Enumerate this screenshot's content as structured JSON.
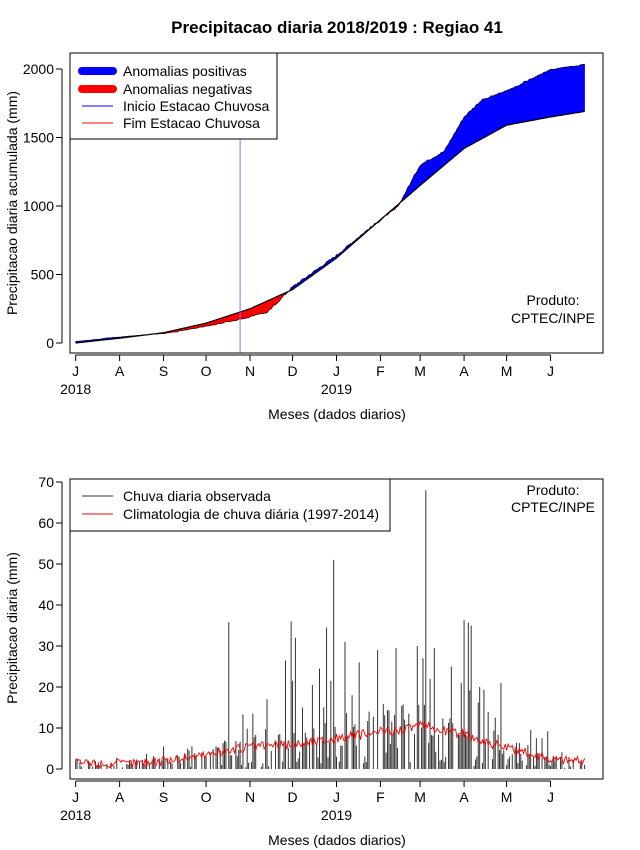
{
  "page": {
    "title": "Precipitacao diaria 2018/2019 : Regiao 41",
    "credit_line1": "Produto:",
    "credit_line2": "CPTEC/INPE"
  },
  "colors": {
    "positive": "#0000ff",
    "negative": "#ff0000",
    "start_line": "#6f7bff",
    "end_line": "#ff0000",
    "observed": "#333333",
    "climatology": "#ff0000"
  },
  "months": [
    "J",
    "A",
    "S",
    "O",
    "N",
    "D",
    "J",
    "F",
    "M",
    "A",
    "M",
    "J"
  ],
  "years": [
    "2018",
    "2019"
  ],
  "chart_data": [
    {
      "type": "area",
      "title": "Precipitacao diaria 2018/2019 : Regiao 41",
      "xlabel": "Meses (dados diarios)",
      "ylabel": "Precipitacao diaria acumulada (mm)",
      "ylim": [
        0,
        2000
      ],
      "yticks": [
        0,
        500,
        1000,
        1500,
        2000
      ],
      "x_unit": "days since 1 Jul 2018",
      "xlim": [
        -4,
        372
      ],
      "rainy_season_start_day": 116,
      "legend": [
        "Anomalias positivas",
        "Anomalias negativas",
        "Inicio Estacao Chuvosa",
        "Fim Estacao Chuvosa"
      ],
      "series": [
        {
          "name": "Climatologia acumulada",
          "points": [
            [
              0,
              0
            ],
            [
              31,
              35
            ],
            [
              62,
              75
            ],
            [
              92,
              145
            ],
            [
              123,
              250
            ],
            [
              153,
              390
            ],
            [
              184,
              620
            ],
            [
              215,
              900
            ],
            [
              243,
              1150
            ],
            [
              274,
              1420
            ],
            [
              304,
              1590
            ],
            [
              335,
              1650
            ],
            [
              359,
              1690
            ]
          ]
        },
        {
          "name": "Observado acumulado",
          "points": [
            [
              0,
              5
            ],
            [
              31,
              38
            ],
            [
              62,
              63
            ],
            [
              92,
              118
            ],
            [
              115,
              170
            ],
            [
              135,
              220
            ],
            [
              153,
              410
            ],
            [
              184,
              640
            ],
            [
              205,
              820
            ],
            [
              227,
              990
            ],
            [
              243,
              1300
            ],
            [
              260,
              1400
            ],
            [
              274,
              1650
            ],
            [
              286,
              1770
            ],
            [
              304,
              1840
            ],
            [
              320,
              1920
            ],
            [
              335,
              1990
            ],
            [
              359,
              2030
            ]
          ]
        }
      ]
    },
    {
      "type": "bar",
      "xlabel": "Meses (dados diarios)",
      "ylabel": "Precipitacao diaria (mm)",
      "ylim": [
        0,
        70
      ],
      "yticks": [
        0,
        10,
        20,
        30,
        40,
        50,
        60,
        70
      ],
      "legend": [
        "Chuva diaria observada",
        "Climatologia de chuva diária (1997-2014)"
      ],
      "observed_peaks": [
        [
          108,
          35.8
        ],
        [
          125,
          13.5
        ],
        [
          135,
          17
        ],
        [
          148,
          26.5
        ],
        [
          152,
          36
        ],
        [
          153,
          21.5
        ],
        [
          155,
          32
        ],
        [
          160,
          15
        ],
        [
          167,
          20.5
        ],
        [
          172,
          24.5
        ],
        [
          177,
          34.5
        ],
        [
          180,
          21.5
        ],
        [
          182,
          51
        ],
        [
          190,
          31
        ],
        [
          195,
          18
        ],
        [
          200,
          26
        ],
        [
          207,
          14
        ],
        [
          213,
          29
        ],
        [
          226,
          29.5
        ],
        [
          235,
          13.5
        ],
        [
          241,
          30
        ],
        [
          245,
          27
        ],
        [
          247,
          68
        ],
        [
          250,
          22
        ],
        [
          253,
          29.5
        ],
        [
          265,
          25
        ],
        [
          272,
          21
        ],
        [
          274,
          36.3
        ],
        [
          277,
          35.7
        ],
        [
          279,
          35
        ],
        [
          285,
          20
        ],
        [
          296,
          12.5
        ],
        [
          300,
          21
        ],
        [
          321,
          9.5
        ],
        [
          325,
          7.5
        ],
        [
          329,
          7.5
        ],
        [
          333,
          9.2
        ]
      ],
      "climatology_levels": [
        [
          0,
          1.5
        ],
        [
          31,
          1.2
        ],
        [
          62,
          2
        ],
        [
          92,
          3.5
        ],
        [
          123,
          5.5
        ],
        [
          153,
          6
        ],
        [
          184,
          7.5
        ],
        [
          215,
          9
        ],
        [
          243,
          10.5
        ],
        [
          274,
          8.5
        ],
        [
          304,
          5
        ],
        [
          335,
          2.5
        ],
        [
          359,
          2
        ]
      ]
    }
  ]
}
